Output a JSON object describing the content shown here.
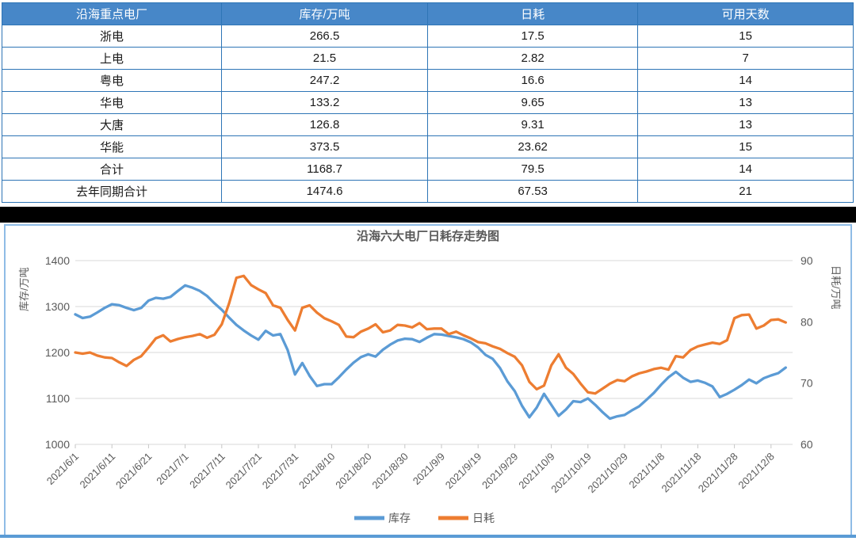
{
  "table": {
    "headers": [
      "沿海重点电厂",
      "库存/万吨",
      "日耗",
      "可用天数"
    ],
    "rows": [
      [
        "浙电",
        "266.5",
        "17.5",
        "15"
      ],
      [
        "上电",
        "21.5",
        "2.82",
        "7"
      ],
      [
        "粤电",
        "247.2",
        "16.6",
        "14"
      ],
      [
        "华电",
        "133.2",
        "9.65",
        "13"
      ],
      [
        "大唐",
        "126.8",
        "9.31",
        "13"
      ],
      [
        "华能",
        "373.5",
        "23.62",
        "15"
      ],
      [
        "合计",
        "1168.7",
        "79.5",
        "14"
      ],
      [
        "去年同期合计",
        "1474.6",
        "67.53",
        "21"
      ]
    ]
  },
  "chart_data": {
    "type": "line",
    "title": "沿海六大电厂日耗存走势图",
    "ylabel_left": "库存/万吨",
    "ylabel_right": "日耗/万吨",
    "ylim_left": [
      1000,
      1400
    ],
    "ylim_right": [
      60,
      90
    ],
    "yticks_left": [
      1400,
      1300,
      1200,
      1100,
      1000
    ],
    "yticks_right": [
      90,
      80,
      70,
      60
    ],
    "grid": true,
    "legend_position": "bottom",
    "x_tick_labels": [
      "2021/6/1",
      "2021/6/11",
      "2021/6/21",
      "2021/7/1",
      "2021/7/11",
      "2021/7/21",
      "2021/7/31",
      "2021/8/10",
      "2021/8/20",
      "2021/8/30",
      "2021/9/9",
      "2021/9/19",
      "2021/9/29",
      "2021/10/9",
      "2021/10/19",
      "2021/10/29",
      "2021/11/8",
      "2021/11/18",
      "2021/11/28",
      "2021/12/8"
    ],
    "x_tick_interval_days": 10,
    "sample_step_days": 2,
    "total_days": 194,
    "series": [
      {
        "name": "库存",
        "axis": "left",
        "color": "#5B9BD5",
        "values": [
          1283,
          1275,
          1278,
          1287,
          1297,
          1305,
          1303,
          1297,
          1292,
          1297,
          1313,
          1319,
          1317,
          1321,
          1334,
          1346,
          1341,
          1334,
          1323,
          1307,
          1293,
          1276,
          1260,
          1248,
          1237,
          1228,
          1247,
          1237,
          1240,
          1205,
          1152,
          1177,
          1149,
          1127,
          1131,
          1131,
          1146,
          1163,
          1178,
          1190,
          1196,
          1191,
          1206,
          1217,
          1226,
          1230,
          1229,
          1223,
          1232,
          1240,
          1239,
          1236,
          1233,
          1229,
          1222,
          1211,
          1195,
          1186,
          1166,
          1137,
          1116,
          1084,
          1059,
          1080,
          1110,
          1086,
          1062,
          1076,
          1094,
          1092,
          1100,
          1086,
          1070,
          1056,
          1061,
          1064,
          1074,
          1083,
          1097,
          1112,
          1130,
          1146,
          1158,
          1145,
          1136,
          1139,
          1134,
          1126,
          1103,
          1110,
          1119,
          1129,
          1141,
          1133,
          1144,
          1150,
          1155,
          1167
        ]
      },
      {
        "name": "日耗",
        "axis": "right",
        "color": "#ED7D31",
        "values": [
          75.0,
          74.8,
          75.0,
          74.5,
          74.2,
          74.1,
          73.4,
          72.8,
          73.8,
          74.4,
          75.8,
          77.3,
          77.8,
          76.8,
          77.2,
          77.5,
          77.7,
          78.0,
          77.4,
          77.9,
          79.6,
          83.0,
          87.2,
          87.5,
          86.0,
          85.3,
          84.7,
          82.7,
          82.3,
          80.3,
          78.6,
          82.3,
          82.7,
          81.5,
          80.6,
          80.1,
          79.5,
          77.6,
          77.5,
          78.4,
          78.9,
          79.6,
          78.3,
          78.6,
          79.5,
          79.4,
          79.1,
          79.8,
          78.8,
          78.9,
          78.9,
          78.0,
          78.4,
          77.8,
          77.3,
          76.7,
          76.5,
          76.0,
          75.6,
          74.9,
          74.3,
          72.9,
          70.2,
          69.0,
          69.6,
          72.9,
          74.7,
          72.5,
          71.5,
          69.9,
          68.5,
          68.3,
          69.1,
          69.9,
          70.5,
          70.3,
          71.1,
          71.6,
          71.9,
          72.3,
          72.5,
          72.2,
          74.4,
          74.2,
          75.4,
          76.0,
          76.3,
          76.6,
          76.4,
          77.0,
          80.6,
          81.1,
          81.2,
          78.9,
          79.4,
          80.3,
          80.4,
          79.9
        ]
      }
    ],
    "legend": [
      "库存",
      "日耗"
    ]
  },
  "colors": {
    "header_bg": "#4787C8",
    "table_border": "#2E75B6",
    "inventory_line": "#5B9BD5",
    "consumption_line": "#ED7D31",
    "divider": "#000000",
    "chart_border": "#8FBCE6",
    "bottom_bar": "#5B9BD5",
    "axis_text": "#595959",
    "gridline": "#D9D9D9"
  }
}
